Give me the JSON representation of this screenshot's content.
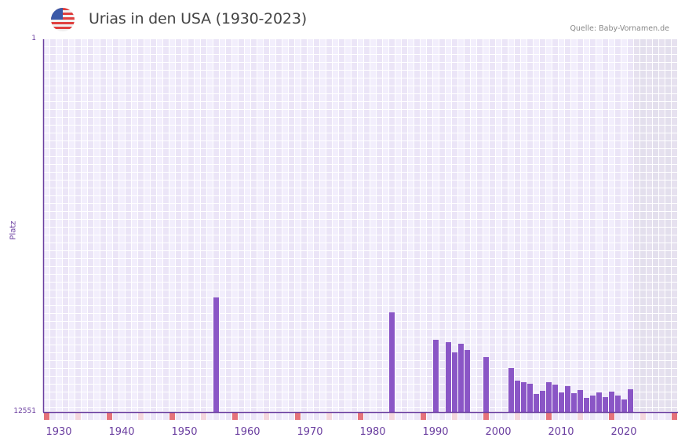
{
  "header": {
    "title": "Urias in den USA (1930-2023)",
    "source": "Quelle: Baby-Vornamen.de",
    "flag_icon": "us-flag-icon"
  },
  "axes": {
    "y_label": "Platz",
    "y_top": "1",
    "y_bottom": "12551",
    "x_ticks": [
      "1930",
      "1940",
      "1950",
      "1960",
      "1970",
      "1980",
      "1990",
      "2000",
      "2010",
      "2020"
    ]
  },
  "colors": {
    "bar": "#8a56c6",
    "axis": "#6b3fa0",
    "grid_a": "#f2eefc",
    "grid_b": "#ebe5f7",
    "future_shade": "#e3dfed",
    "marker_decade": "#e5727a",
    "marker_half": "#f4d6dd"
  },
  "chart_data": {
    "type": "bar",
    "title": "Urias in den USA (1930-2023)",
    "xlabel": "",
    "ylabel": "Platz",
    "ylim": [
      12551,
      1
    ],
    "y_inverted": true,
    "x_range": [
      1928,
      2028
    ],
    "shaded_region": [
      2022,
      2028
    ],
    "grid": true,
    "legend": null,
    "source": "Quelle: Baby-Vornamen.de",
    "x": [
      1955,
      1983,
      1990,
      1992,
      1993,
      1994,
      1995,
      1998,
      2002,
      2003,
      2004,
      2005,
      2006,
      2007,
      2008,
      2009,
      2010,
      2011,
      2012,
      2013,
      2014,
      2015,
      2016,
      2017,
      2018,
      2019,
      2020,
      2021
    ],
    "values": [
      8694,
      9195,
      10119,
      10199,
      10543,
      10252,
      10463,
      10701,
      11071,
      11494,
      11546,
      11599,
      11943,
      11837,
      11546,
      11626,
      11890,
      11679,
      11916,
      11811,
      12075,
      11996,
      11890,
      12049,
      11864,
      11996,
      12128,
      11784
    ]
  }
}
